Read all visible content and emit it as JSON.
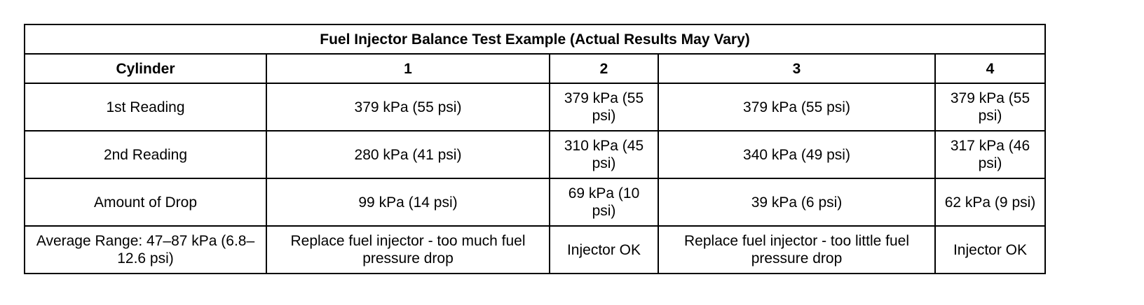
{
  "table": {
    "title": "Fuel Injector Balance Test Example (Actual Results May Vary)",
    "headers": [
      "Cylinder",
      "1",
      "2",
      "3",
      "4"
    ],
    "rows": [
      {
        "label": "1st Reading",
        "values": [
          "379 kPa (55 psi)",
          "379 kPa (55 psi)",
          "379 kPa (55 psi)",
          "379 kPa (55 psi)"
        ]
      },
      {
        "label": "2nd Reading",
        "values": [
          "280 kPa (41 psi)",
          "310 kPa (45 psi)",
          "340 kPa (49 psi)",
          "317 kPa (46 psi)"
        ]
      },
      {
        "label": "Amount of Drop",
        "values": [
          "99 kPa (14 psi)",
          "69 kPa (10 psi)",
          "39 kPa (6 psi)",
          "62 kPa (9 psi)"
        ]
      },
      {
        "label": "Average Range: 47–87 kPa (6.8–12.6 psi)",
        "values": [
          "Replace fuel injector - too much fuel pressure drop",
          "Injector OK",
          "Replace fuel injector - too little fuel pressure drop",
          "Injector OK"
        ]
      }
    ]
  }
}
